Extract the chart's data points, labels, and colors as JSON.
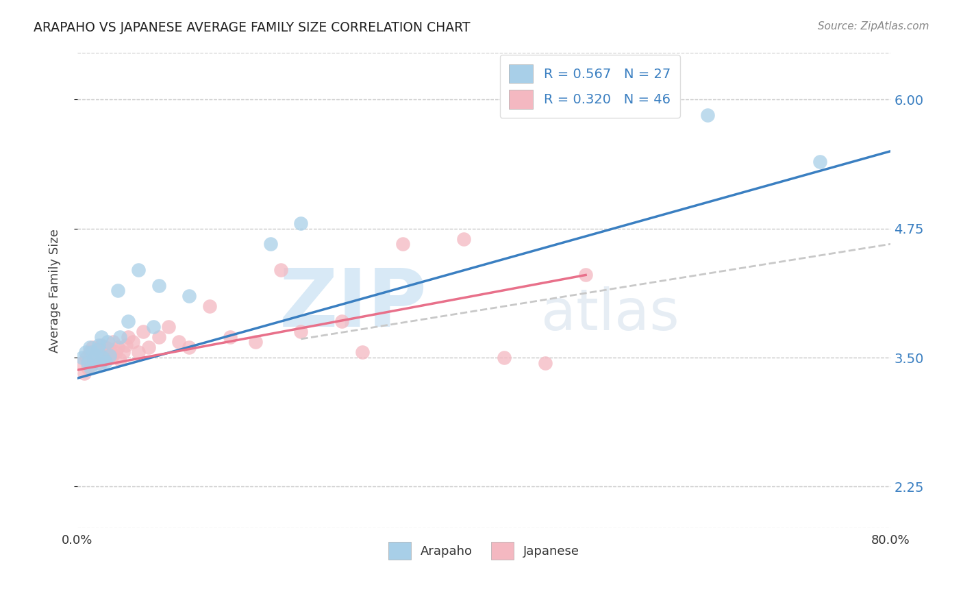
{
  "title": "ARAPAHO VS JAPANESE AVERAGE FAMILY SIZE CORRELATION CHART",
  "source": "Source: ZipAtlas.com",
  "ylabel": "Average Family Size",
  "xlim": [
    0.0,
    0.8
  ],
  "ylim": [
    1.85,
    6.45
  ],
  "yticks_right": [
    2.25,
    3.5,
    4.75,
    6.0
  ],
  "ytick_labels": [
    "2.25",
    "3.50",
    "4.75",
    "6.00"
  ],
  "xticks": [
    0.0,
    0.1,
    0.2,
    0.3,
    0.4,
    0.5,
    0.6,
    0.7,
    0.8
  ],
  "xticklabels": [
    "0.0%",
    "",
    "",
    "",
    "",
    "",
    "",
    "",
    "80.0%"
  ],
  "watermark_zip": "ZIP",
  "watermark_atlas": "atlas",
  "arapaho_color": "#a8cfe8",
  "japanese_color": "#f4b8c1",
  "arapaho_line_color": "#3a7fc1",
  "japanese_line_color": "#e8708a",
  "grey_dash_color": "#c8c8c8",
  "arapaho_x": [
    0.005,
    0.008,
    0.01,
    0.012,
    0.013,
    0.015,
    0.016,
    0.018,
    0.02,
    0.021,
    0.022,
    0.024,
    0.025,
    0.028,
    0.03,
    0.032,
    0.04,
    0.042,
    0.05,
    0.06,
    0.075,
    0.08,
    0.11,
    0.19,
    0.22,
    0.62,
    0.73
  ],
  "arapaho_y": [
    3.5,
    3.55,
    3.45,
    3.6,
    3.4,
    3.55,
    3.48,
    3.52,
    3.58,
    3.62,
    3.44,
    3.7,
    3.5,
    3.46,
    3.65,
    3.52,
    4.15,
    3.7,
    3.85,
    4.35,
    3.8,
    4.2,
    4.1,
    4.6,
    4.8,
    5.85,
    5.4
  ],
  "japanese_x": [
    0.005,
    0.007,
    0.009,
    0.01,
    0.012,
    0.013,
    0.015,
    0.016,
    0.018,
    0.02,
    0.021,
    0.022,
    0.024,
    0.025,
    0.026,
    0.028,
    0.03,
    0.032,
    0.034,
    0.035,
    0.038,
    0.04,
    0.042,
    0.045,
    0.048,
    0.05,
    0.055,
    0.06,
    0.065,
    0.07,
    0.08,
    0.09,
    0.1,
    0.11,
    0.13,
    0.15,
    0.175,
    0.2,
    0.22,
    0.26,
    0.28,
    0.32,
    0.38,
    0.42,
    0.46,
    0.5
  ],
  "japanese_y": [
    3.45,
    3.35,
    3.5,
    3.4,
    3.55,
    3.42,
    3.6,
    3.48,
    3.52,
    3.55,
    3.45,
    3.5,
    3.62,
    3.48,
    3.55,
    3.6,
    3.52,
    3.58,
    3.5,
    3.65,
    3.55,
    3.6,
    3.48,
    3.55,
    3.62,
    3.7,
    3.65,
    3.55,
    3.75,
    3.6,
    3.7,
    3.8,
    3.65,
    3.6,
    4.0,
    3.7,
    3.65,
    4.35,
    3.75,
    3.85,
    3.55,
    4.6,
    4.65,
    3.5,
    3.45,
    4.3
  ],
  "arapaho_line_x0": 0.0,
  "arapaho_line_y0": 3.3,
  "arapaho_line_x1": 0.8,
  "arapaho_line_y1": 5.5,
  "japanese_line_x0": 0.0,
  "japanese_line_y0": 3.38,
  "japanese_line_x1": 0.5,
  "japanese_line_y1": 4.3,
  "grey_line_x0": 0.22,
  "grey_line_y0": 3.68,
  "grey_line_x1": 0.8,
  "grey_line_y1": 4.6
}
